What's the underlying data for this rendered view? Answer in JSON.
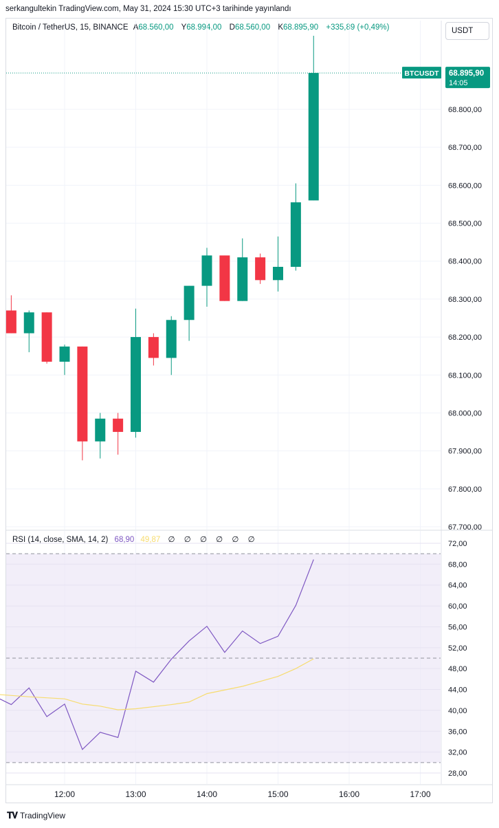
{
  "header": {
    "publish_line": "serkangultekin TradingView.com, May 31, 2024 15:30 UTC+3 tarihinde yayınlandı"
  },
  "symbol": {
    "name": "Bitcoin / TetherUS, 15, BINANCE",
    "open_label": "A",
    "open": "68.560,00",
    "high_label": "Y",
    "high": "68.994,00",
    "low_label": "D",
    "low": "68.560,00",
    "close_label": "K",
    "close": "68.895,90",
    "change": "+335,89 (+0,49%)"
  },
  "currency_button": "USDT",
  "price_tag": {
    "ticker": "BTCUSDT",
    "price": "68.895,90",
    "countdown": "14:05"
  },
  "rsi_legend": {
    "label": "RSI (14, close, SMA, 14, 2)",
    "rsi": "68,90",
    "sma": "49,87",
    "zeros": "∅ ∅ ∅ ∅ ∅ ∅"
  },
  "footer": {
    "brand": "TradingView"
  },
  "colors": {
    "up": "#089981",
    "down": "#f23645",
    "rsi": "#7e57c2",
    "sma": "#f7dc6f",
    "band": "#ede7f6"
  },
  "chart_data": [
    {
      "type": "candlestick",
      "title": "Bitcoin / TetherUS, 15, BINANCE",
      "x_ticks": [
        "12:00",
        "13:00",
        "14:00",
        "15:00",
        "16:00",
        "17:00"
      ],
      "x_tick_times": [
        12.0,
        13.0,
        14.0,
        15.0,
        16.0,
        17.0
      ],
      "y_ticks": [
        "68.800,00",
        "68.700,00",
        "68.600,00",
        "68.500,00",
        "68.400,00",
        "68.300,00",
        "68.200,00",
        "68.100,00",
        "68.000,00",
        "67.900,00",
        "67.800,00",
        "67.700,00"
      ],
      "y_tick_values": [
        68800,
        68700,
        68600,
        68500,
        68400,
        68300,
        68200,
        68100,
        68000,
        67900,
        67800,
        67700
      ],
      "ylim": [
        67700,
        69000
      ],
      "last_price": 68895.9,
      "candles": [
        {
          "t": 11.25,
          "o": 68270,
          "h": 68310,
          "l": 68210,
          "c": 68210
        },
        {
          "t": 11.5,
          "o": 68210,
          "h": 68270,
          "l": 68160,
          "c": 68265
        },
        {
          "t": 11.75,
          "o": 68265,
          "h": 68265,
          "l": 68130,
          "c": 68135
        },
        {
          "t": 12.0,
          "o": 68135,
          "h": 68180,
          "l": 68100,
          "c": 68175
        },
        {
          "t": 12.25,
          "o": 68175,
          "h": 68175,
          "l": 67875,
          "c": 67925
        },
        {
          "t": 12.5,
          "o": 67925,
          "h": 68000,
          "l": 67880,
          "c": 67985
        },
        {
          "t": 12.75,
          "o": 67985,
          "h": 68000,
          "l": 67890,
          "c": 67950
        },
        {
          "t": 13.0,
          "o": 67950,
          "h": 68275,
          "l": 67935,
          "c": 68200
        },
        {
          "t": 13.25,
          "o": 68200,
          "h": 68210,
          "l": 68125,
          "c": 68145
        },
        {
          "t": 13.5,
          "o": 68145,
          "h": 68255,
          "l": 68100,
          "c": 68245
        },
        {
          "t": 13.75,
          "o": 68245,
          "h": 68335,
          "l": 68190,
          "c": 68335
        },
        {
          "t": 14.0,
          "o": 68335,
          "h": 68435,
          "l": 68280,
          "c": 68415
        },
        {
          "t": 14.25,
          "o": 68415,
          "h": 68415,
          "l": 68295,
          "c": 68295
        },
        {
          "t": 14.5,
          "o": 68295,
          "h": 68460,
          "l": 68295,
          "c": 68410
        },
        {
          "t": 14.75,
          "o": 68410,
          "h": 68420,
          "l": 68340,
          "c": 68350
        },
        {
          "t": 15.0,
          "o": 68350,
          "h": 68465,
          "l": 68320,
          "c": 68385
        },
        {
          "t": 15.25,
          "o": 68385,
          "h": 68605,
          "l": 68375,
          "c": 68555
        },
        {
          "t": 15.5,
          "o": 68560,
          "h": 68994,
          "l": 68560,
          "c": 68895.9
        }
      ]
    },
    {
      "type": "line",
      "title": "RSI (14, close, SMA, 14, 2)",
      "y_ticks": [
        "72,00",
        "68,00",
        "64,00",
        "60,00",
        "56,00",
        "52,00",
        "48,00",
        "44,00",
        "40,00",
        "36,00",
        "32,00",
        "28,00"
      ],
      "y_tick_values": [
        72,
        68,
        64,
        60,
        56,
        52,
        48,
        44,
        40,
        36,
        32,
        28
      ],
      "ylim": [
        26,
        75
      ],
      "bands": {
        "upper": 70,
        "middle": 50,
        "lower": 30
      },
      "series": [
        {
          "name": "RSI",
          "points": [
            [
              11.0,
              42.8
            ],
            [
              11.25,
              41.1
            ],
            [
              11.5,
              44.3
            ],
            [
              11.75,
              38.8
            ],
            [
              12.0,
              41.2
            ],
            [
              12.25,
              32.5
            ],
            [
              12.5,
              35.8
            ],
            [
              12.75,
              34.8
            ],
            [
              13.0,
              47.5
            ],
            [
              13.25,
              45.4
            ],
            [
              13.5,
              49.8
            ],
            [
              13.75,
              53.3
            ],
            [
              14.0,
              56.1
            ],
            [
              14.25,
              51.1
            ],
            [
              14.5,
              55.2
            ],
            [
              14.75,
              52.8
            ],
            [
              15.0,
              54.2
            ],
            [
              15.25,
              60.1
            ],
            [
              15.5,
              68.9
            ]
          ]
        },
        {
          "name": "SMA",
          "points": [
            [
              11.0,
              43.1
            ],
            [
              11.5,
              42.6
            ],
            [
              12.0,
              42.2
            ],
            [
              12.25,
              41.2
            ],
            [
              12.5,
              40.8
            ],
            [
              12.75,
              40.1
            ],
            [
              13.0,
              40.3
            ],
            [
              13.5,
              41.1
            ],
            [
              13.75,
              41.6
            ],
            [
              14.0,
              43.2
            ],
            [
              14.5,
              44.6
            ],
            [
              15.0,
              46.5
            ],
            [
              15.25,
              48.0
            ],
            [
              15.5,
              49.87
            ]
          ]
        }
      ]
    }
  ]
}
